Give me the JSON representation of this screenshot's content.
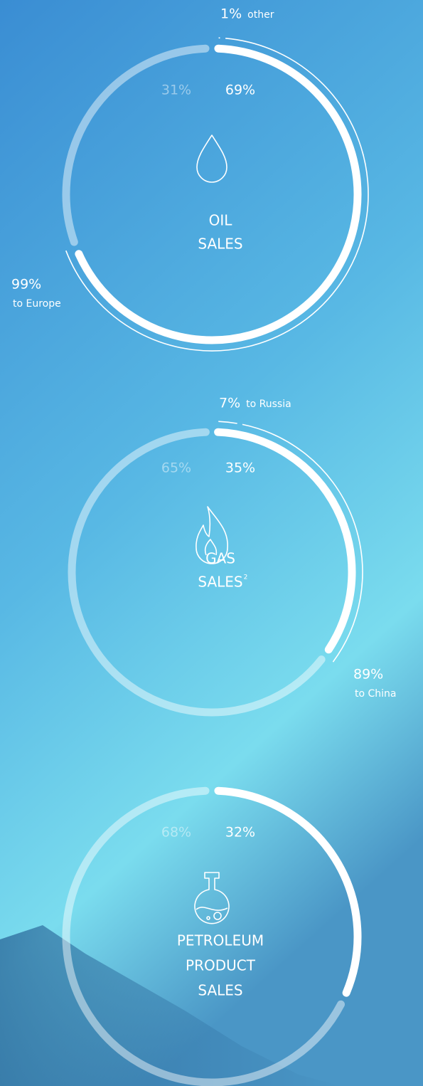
{
  "chart_data": [
    {
      "type": "donut",
      "title_lines": [
        "OIL",
        "SALES"
      ],
      "values": [
        69,
        31
      ],
      "value_labels": [
        "69%",
        "31%"
      ],
      "colors": [
        "#ffffff",
        "#ffffff73"
      ],
      "breakdown": {
        "values": [
          1,
          99
        ],
        "value_labels": [
          "1%",
          "99%"
        ],
        "labels": [
          "other",
          "to Europe"
        ]
      }
    },
    {
      "type": "donut",
      "title_lines": [
        "GAS",
        "SALES"
      ],
      "footnote_mark": "2",
      "values": [
        35,
        65
      ],
      "value_labels": [
        "35%",
        "65%"
      ],
      "colors": [
        "#ffffff",
        "#ffffff73"
      ],
      "breakdown": {
        "values": [
          7,
          89
        ],
        "value_labels": [
          "7%",
          "89%"
        ],
        "labels": [
          "to Russia",
          "to China"
        ]
      }
    },
    {
      "type": "donut",
      "title_lines": [
        "PETROLEUM",
        "PRODUCT",
        "SALES"
      ],
      "values": [
        32,
        68
      ],
      "value_labels": [
        "32%",
        "68%"
      ],
      "colors": [
        "#ffffff",
        "#ffffff73"
      ]
    }
  ]
}
